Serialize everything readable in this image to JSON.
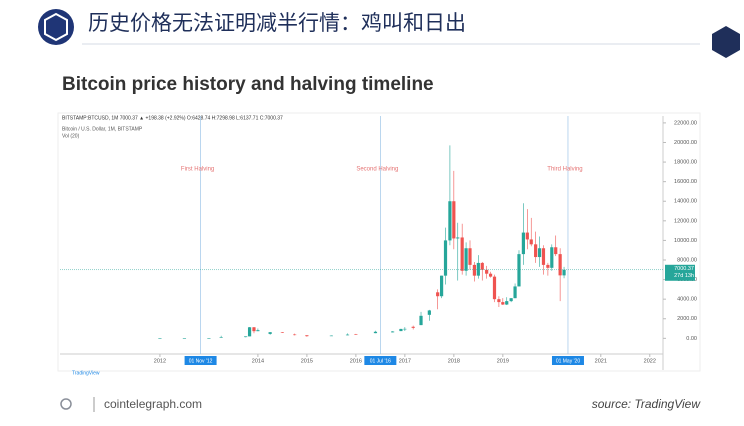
{
  "slide": {
    "header": "历史价格无法证明减半行情：鸡叫和日出",
    "site": "cointelegraph.com",
    "source": "source: TradingView"
  },
  "chart_data": {
    "type": "candlestick",
    "title": "Bitcoin price history and halving timeline",
    "symbol_line": "BITSTAMP:BTCUSD, 1M 7000.37 ▲ +198.38 (+2.92%) O:6428.74 H:7298.98 L:6137.71 C:7000.37",
    "legend_line": "Bitcoin / U.S. Dollar, 1M, BITSTAMP",
    "volume_label": "Vol (20)",
    "brand": "TradingView",
    "up_color": "#26a69a",
    "down_color": "#ef5350",
    "x": [
      2012.0,
      2012.5,
      2013.0,
      2013.25,
      2013.75,
      2013.83,
      2013.92,
      2014.0,
      2014.25,
      2014.5,
      2014.75,
      2015.0,
      2015.5,
      2015.83,
      2016.0,
      2016.4,
      2016.75,
      2016.92,
      2017.0,
      2017.17,
      2017.33,
      2017.5,
      2017.67,
      2017.75,
      2017.83,
      2017.92,
      2018.0,
      2018.08,
      2018.17,
      2018.25,
      2018.33,
      2018.42,
      2018.5,
      2018.58,
      2018.67,
      2018.75,
      2018.83,
      2018.92,
      2019.0,
      2019.08,
      2019.17,
      2019.25,
      2019.33,
      2019.42,
      2019.5,
      2019.58,
      2019.67,
      2019.75,
      2019.83,
      2019.92,
      2020.0,
      2020.08,
      2020.17,
      2020.25
    ],
    "open": [
      5,
      5,
      13,
      100,
      125,
      200,
      1130,
      730,
      450,
      630,
      390,
      315,
      260,
      310,
      430,
      530,
      610,
      740,
      960,
      1180,
      1350,
      2400,
      4700,
      4300,
      6400,
      10000,
      14000,
      10200,
      10300,
      6900,
      9200,
      7500,
      6400,
      7700,
      7000,
      6600,
      6300,
      4000,
      3700,
      3450,
      3800,
      4100,
      5300,
      8600,
      10800,
      10100,
      9600,
      8300,
      9200,
      7500,
      7200,
      9300,
      8600,
      6428.74
    ],
    "high": [
      7,
      10,
      40,
      260,
      200,
      1160,
      1160,
      1000,
      620,
      650,
      480,
      320,
      300,
      500,
      460,
      780,
      740,
      980,
      1150,
      1300,
      2700,
      2900,
      5000,
      6400,
      11300,
      19700,
      17100,
      11800,
      11700,
      9800,
      10000,
      7800,
      8500,
      7800,
      7400,
      6800,
      6500,
      4300,
      4100,
      4200,
      4100,
      5600,
      9000,
      13800,
      13200,
      12300,
      10900,
      10400,
      9500,
      7700,
      9600,
      10500,
      9200,
      7298.98
    ],
    "low": [
      4,
      5,
      13,
      60,
      110,
      200,
      520,
      730,
      360,
      560,
      300,
      160,
      250,
      310,
      360,
      520,
      600,
      740,
      750,
      900,
      1350,
      1800,
      2970,
      4100,
      5500,
      9500,
      9100,
      5900,
      6500,
      6400,
      7000,
      5800,
      6100,
      5900,
      6100,
      6200,
      3700,
      3200,
      3400,
      3400,
      3700,
      4100,
      5300,
      7500,
      9100,
      9400,
      7700,
      7300,
      6500,
      6400,
      6900,
      8400,
      3800,
      6137.71
    ],
    "close": [
      5,
      9,
      33,
      130,
      198,
      1130,
      730,
      830,
      630,
      590,
      380,
      220,
      280,
      380,
      370,
      670,
      700,
      960,
      970,
      1070,
      2300,
      2850,
      4300,
      6400,
      10000,
      14000,
      10200,
      10300,
      6900,
      9200,
      7500,
      6400,
      7700,
      7000,
      6600,
      6300,
      4000,
      3700,
      3450,
      3800,
      4100,
      5300,
      8600,
      10800,
      10100,
      9600,
      8300,
      9200,
      7500,
      7200,
      9300,
      8600,
      6430,
      7000.37
    ],
    "xlim": [
      2009.96,
      2022.27
    ],
    "xticks": [
      2012,
      2014,
      2015,
      2016,
      2017,
      2018,
      2019,
      2021,
      2022
    ],
    "ylim": [
      -1600,
      22500
    ],
    "yticks": [
      {
        "value": 0,
        "label": "0.00"
      },
      {
        "value": 2000,
        "label": "2000.00"
      },
      {
        "value": 4000,
        "label": "4000.00"
      },
      {
        "value": 6000,
        "label": "6000.00"
      },
      {
        "value": 8000,
        "label": "8000.00"
      },
      {
        "value": 10000,
        "label": "10000.00"
      },
      {
        "value": 12000,
        "label": "12000.00"
      },
      {
        "value": 14000,
        "label": "14000.00"
      },
      {
        "value": 16000,
        "label": "16000.00"
      },
      {
        "value": 18000,
        "label": "18000.00"
      },
      {
        "value": 20000,
        "label": "20000.00"
      },
      {
        "value": 22000,
        "label": "22000.00"
      }
    ],
    "halvings": [
      {
        "x": 2012.83,
        "label": "First Halving",
        "date_label": "01 Nov '12"
      },
      {
        "x": 2016.5,
        "label": "Second Halving",
        "date_label": "01 Jul '16"
      },
      {
        "x": 2020.33,
        "label": "Third Halving",
        "date_label": "01 May '20"
      }
    ],
    "last_price": {
      "value": 7000.37,
      "label": "7000.37"
    },
    "countdown": "27d 13h"
  }
}
